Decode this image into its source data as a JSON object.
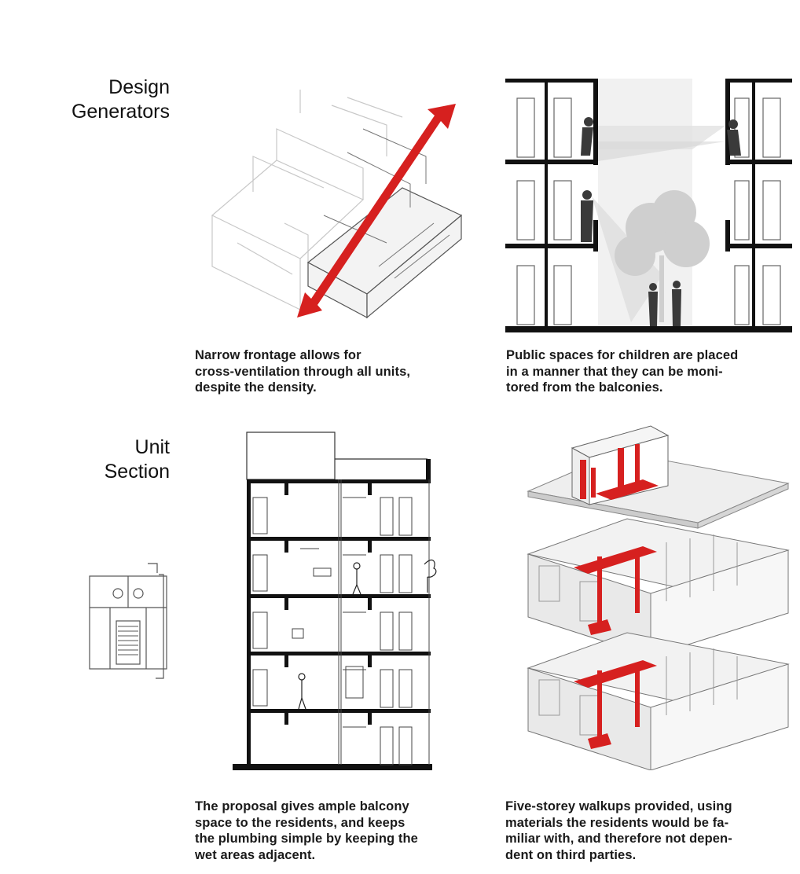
{
  "sections": {
    "design_generators": {
      "title_line1": "Design",
      "title_line2": "Generators"
    },
    "unit_section": {
      "title_line1": "Unit",
      "title_line2": "Section"
    }
  },
  "captions": {
    "frontage": [
      "Narrow frontage allows for",
      "cross-ventilation through all units,",
      "despite the density."
    ],
    "public_spaces": [
      "Public spaces for children are placed",
      "in a manner that they can be moni-",
      "tored from the balconies."
    ],
    "balcony": [
      "The proposal gives ample balcony",
      "space to the residents, and keeps",
      "the plumbing simple by keeping the",
      "wet areas adjacent."
    ],
    "walkups": [
      "Five-storey walkups provided, using",
      "materials the residents would be fa-",
      "miliar with, and therefore not depen-",
      "dent on third parties."
    ]
  },
  "colors": {
    "accent_red": "#d6201f",
    "line": "#111111",
    "grey": "#e6e6e6"
  }
}
